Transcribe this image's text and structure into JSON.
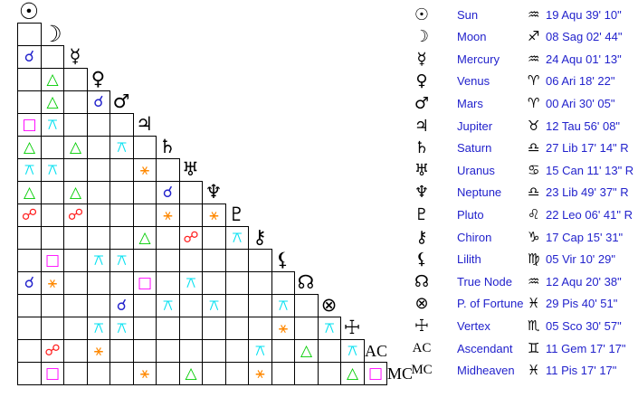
{
  "colors": {
    "background": "#ffffff",
    "grid_line": "#000000",
    "glyph": "#000000",
    "legend_text": "#2222cc",
    "aspects": {
      "conjunction": "#2222cc",
      "sextile": "#ff8800",
      "square": "#ff00ff",
      "trine": "#00cc00",
      "opposition": "#ff2222",
      "quincunx": "#00e0f0"
    }
  },
  "aspect_glyphs": {
    "conjunction": "☌",
    "sextile": "⚹",
    "square": "□",
    "trine": "△",
    "opposition": "☍",
    "quincunx": "⚻"
  },
  "grid": {
    "points": [
      {
        "id": "sun",
        "glyph": "☉",
        "style": "symbol"
      },
      {
        "id": "moon",
        "glyph": "☽",
        "style": "symbol"
      },
      {
        "id": "mercury",
        "glyph": "☿",
        "style": "symbol"
      },
      {
        "id": "venus",
        "glyph": "♀",
        "style": "symbol"
      },
      {
        "id": "mars",
        "glyph": "♂",
        "style": "symbol"
      },
      {
        "id": "jupiter",
        "glyph": "♃",
        "style": "symbol"
      },
      {
        "id": "saturn",
        "glyph": "♄",
        "style": "symbol"
      },
      {
        "id": "uranus",
        "glyph": "♅",
        "style": "symbol"
      },
      {
        "id": "neptune",
        "glyph": "♆",
        "style": "symbol"
      },
      {
        "id": "pluto",
        "glyph": "♇",
        "style": "symbol"
      },
      {
        "id": "chiron",
        "glyph": "⚷",
        "style": "symbol"
      },
      {
        "id": "lilith",
        "glyph": "⚸",
        "style": "symbol"
      },
      {
        "id": "true-node",
        "glyph": "☊",
        "style": "symbol"
      },
      {
        "id": "fortune",
        "glyph": "⊗",
        "style": "symbol"
      },
      {
        "id": "vertex",
        "glyph": "☩",
        "style": "symbol"
      },
      {
        "id": "ascendant",
        "glyph": "AC",
        "style": "text"
      },
      {
        "id": "midheaven",
        "glyph": "MC",
        "style": "text"
      }
    ],
    "aspects": [
      {
        "row": 2,
        "col": 0,
        "type": "conjunction"
      },
      {
        "row": 3,
        "col": 1,
        "type": "trine"
      },
      {
        "row": 4,
        "col": 1,
        "type": "trine"
      },
      {
        "row": 4,
        "col": 3,
        "type": "conjunction"
      },
      {
        "row": 5,
        "col": 0,
        "type": "square"
      },
      {
        "row": 5,
        "col": 1,
        "type": "quincunx"
      },
      {
        "row": 6,
        "col": 0,
        "type": "trine"
      },
      {
        "row": 6,
        "col": 2,
        "type": "trine"
      },
      {
        "row": 6,
        "col": 4,
        "type": "quincunx"
      },
      {
        "row": 7,
        "col": 0,
        "type": "quincunx"
      },
      {
        "row": 7,
        "col": 1,
        "type": "quincunx"
      },
      {
        "row": 7,
        "col": 5,
        "type": "sextile"
      },
      {
        "row": 8,
        "col": 0,
        "type": "trine"
      },
      {
        "row": 8,
        "col": 2,
        "type": "trine"
      },
      {
        "row": 8,
        "col": 6,
        "type": "conjunction"
      },
      {
        "row": 9,
        "col": 0,
        "type": "opposition"
      },
      {
        "row": 9,
        "col": 2,
        "type": "opposition"
      },
      {
        "row": 9,
        "col": 6,
        "type": "sextile"
      },
      {
        "row": 9,
        "col": 8,
        "type": "sextile"
      },
      {
        "row": 10,
        "col": 5,
        "type": "trine"
      },
      {
        "row": 10,
        "col": 7,
        "type": "opposition"
      },
      {
        "row": 10,
        "col": 9,
        "type": "quincunx"
      },
      {
        "row": 11,
        "col": 1,
        "type": "square"
      },
      {
        "row": 11,
        "col": 3,
        "type": "quincunx"
      },
      {
        "row": 11,
        "col": 4,
        "type": "quincunx"
      },
      {
        "row": 12,
        "col": 0,
        "type": "conjunction"
      },
      {
        "row": 12,
        "col": 1,
        "type": "sextile"
      },
      {
        "row": 12,
        "col": 5,
        "type": "square"
      },
      {
        "row": 12,
        "col": 7,
        "type": "quincunx"
      },
      {
        "row": 13,
        "col": 4,
        "type": "conjunction"
      },
      {
        "row": 13,
        "col": 6,
        "type": "quincunx"
      },
      {
        "row": 13,
        "col": 8,
        "type": "quincunx"
      },
      {
        "row": 13,
        "col": 11,
        "type": "quincunx"
      },
      {
        "row": 14,
        "col": 3,
        "type": "quincunx"
      },
      {
        "row": 14,
        "col": 4,
        "type": "quincunx"
      },
      {
        "row": 14,
        "col": 11,
        "type": "sextile"
      },
      {
        "row": 14,
        "col": 13,
        "type": "quincunx"
      },
      {
        "row": 15,
        "col": 1,
        "type": "opposition"
      },
      {
        "row": 15,
        "col": 3,
        "type": "sextile"
      },
      {
        "row": 15,
        "col": 10,
        "type": "quincunx"
      },
      {
        "row": 15,
        "col": 12,
        "type": "trine"
      },
      {
        "row": 15,
        "col": 14,
        "type": "quincunx"
      },
      {
        "row": 16,
        "col": 1,
        "type": "square"
      },
      {
        "row": 16,
        "col": 5,
        "type": "sextile"
      },
      {
        "row": 16,
        "col": 7,
        "type": "trine"
      },
      {
        "row": 16,
        "col": 10,
        "type": "sextile"
      },
      {
        "row": 16,
        "col": 14,
        "type": "trine"
      },
      {
        "row": 16,
        "col": 15,
        "type": "square"
      }
    ]
  },
  "legend": {
    "rows": [
      {
        "glyph": "☉",
        "style": "symbol",
        "name": "Sun",
        "sign": "♒",
        "position": "19 Aqu 39' 10\""
      },
      {
        "glyph": "☽",
        "style": "symbol",
        "name": "Moon",
        "sign": "♐",
        "position": "08 Sag 02' 44\""
      },
      {
        "glyph": "☿",
        "style": "symbol",
        "name": "Mercury",
        "sign": "♒",
        "position": "24 Aqu 01' 13\""
      },
      {
        "glyph": "♀",
        "style": "symbol",
        "name": "Venus",
        "sign": "♈",
        "position": "06 Ari 18' 22\""
      },
      {
        "glyph": "♂",
        "style": "symbol",
        "name": "Mars",
        "sign": "♈",
        "position": "00 Ari 30' 05\""
      },
      {
        "glyph": "♃",
        "style": "symbol",
        "name": "Jupiter",
        "sign": "♉",
        "position": "12 Tau 56' 08\""
      },
      {
        "glyph": "♄",
        "style": "symbol",
        "name": "Saturn",
        "sign": "♎",
        "position": "27 Lib 17' 14\" R"
      },
      {
        "glyph": "♅",
        "style": "symbol",
        "name": "Uranus",
        "sign": "♋",
        "position": "15 Can 11' 13\" R"
      },
      {
        "glyph": "♆",
        "style": "symbol",
        "name": "Neptune",
        "sign": "♎",
        "position": "23 Lib 49' 37\" R"
      },
      {
        "glyph": "♇",
        "style": "symbol",
        "name": "Pluto",
        "sign": "♌",
        "position": "22 Leo 06' 41\" R"
      },
      {
        "glyph": "⚷",
        "style": "symbol",
        "name": "Chiron",
        "sign": "♑",
        "position": "17 Cap 15' 31\""
      },
      {
        "glyph": "⚸",
        "style": "symbol",
        "name": "Lilith",
        "sign": "♍",
        "position": "05 Vir 10' 29\""
      },
      {
        "glyph": "☊",
        "style": "symbol",
        "name": "True Node",
        "sign": "♒",
        "position": "12 Aqu 20' 38\""
      },
      {
        "glyph": "⊗",
        "style": "symbol",
        "name": "P. of Fortune",
        "sign": "♓",
        "position": "29 Pis 40' 51\""
      },
      {
        "glyph": "☩",
        "style": "symbol",
        "name": "Vertex",
        "sign": "♏",
        "position": "05 Sco 30' 57\""
      },
      {
        "glyph": "AC",
        "style": "text",
        "name": "Ascendant",
        "sign": "♊",
        "position": "11 Gem 17' 17\""
      },
      {
        "glyph": "MC",
        "style": "text",
        "name": "Midheaven",
        "sign": "♓",
        "position": "11 Pis 17' 17\""
      }
    ]
  }
}
